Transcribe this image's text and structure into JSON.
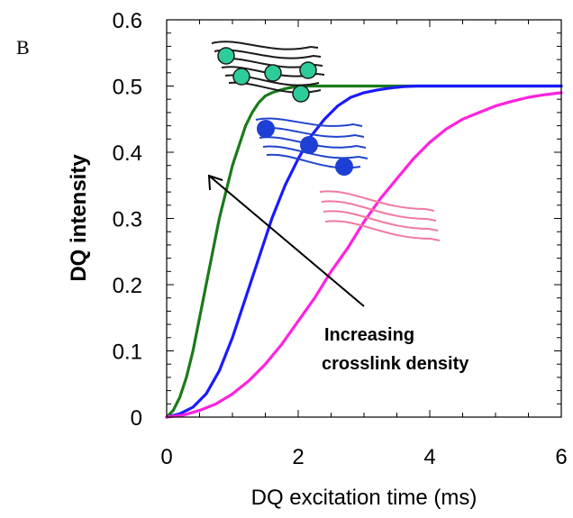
{
  "panel_label": "B",
  "colors": {
    "high": "#1a7a1a",
    "medium": "#1a1aff",
    "low": "#ff22dd",
    "chain_high": "#1a1a1a",
    "bead_high": "#2ecc9a",
    "chain_medium": "#2244cc",
    "bead_medium": "#1e3fd6",
    "chain_low": "#f07aa0"
  },
  "chart_data": {
    "type": "line",
    "xlabel": "DQ excitation time (ms)",
    "ylabel": "DQ intensity",
    "xlim": [
      0,
      6
    ],
    "ylim": [
      0,
      0.6
    ],
    "xticks": [
      "0",
      "2",
      "4",
      "6"
    ],
    "yticks": [
      "0",
      "0.1",
      "0.2",
      "0.3",
      "0.4",
      "0.5",
      "0.6"
    ],
    "annotation": [
      "Increasing",
      "crosslink density"
    ],
    "series": [
      {
        "color": "#1a7a1a",
        "x": [
          0,
          0.1,
          0.2,
          0.3,
          0.4,
          0.5,
          0.6,
          0.7,
          0.8,
          0.9,
          1.0,
          1.1,
          1.2,
          1.3,
          1.4,
          1.5,
          1.6,
          1.7,
          1.8,
          1.9,
          2.0,
          2.2,
          2.5,
          3.0,
          4.0,
          6.0
        ],
        "y": [
          0,
          0.01,
          0.03,
          0.06,
          0.1,
          0.15,
          0.2,
          0.25,
          0.3,
          0.34,
          0.38,
          0.41,
          0.44,
          0.46,
          0.475,
          0.485,
          0.49,
          0.493,
          0.496,
          0.498,
          0.5,
          0.5,
          0.5,
          0.5,
          0.5,
          0.5
        ]
      },
      {
        "color": "#1a1aff",
        "x": [
          0,
          0.2,
          0.4,
          0.6,
          0.8,
          1.0,
          1.2,
          1.4,
          1.6,
          1.8,
          2.0,
          2.2,
          2.4,
          2.6,
          2.8,
          3.0,
          3.2,
          3.4,
          3.6,
          3.8,
          4.0,
          5.0,
          6.0
        ],
        "y": [
          0,
          0.005,
          0.015,
          0.035,
          0.07,
          0.12,
          0.18,
          0.24,
          0.3,
          0.35,
          0.39,
          0.425,
          0.45,
          0.47,
          0.483,
          0.49,
          0.494,
          0.497,
          0.499,
          0.5,
          0.5,
          0.5,
          0.5
        ]
      },
      {
        "color": "#ff22dd",
        "x": [
          0,
          0.25,
          0.5,
          0.75,
          1.0,
          1.25,
          1.5,
          1.75,
          2.0,
          2.25,
          2.5,
          2.75,
          3.0,
          3.25,
          3.5,
          3.75,
          4.0,
          4.25,
          4.5,
          4.75,
          5.0,
          5.25,
          5.5,
          5.75,
          6.0
        ],
        "y": [
          0,
          0.003,
          0.01,
          0.02,
          0.035,
          0.055,
          0.08,
          0.11,
          0.145,
          0.18,
          0.22,
          0.255,
          0.295,
          0.33,
          0.36,
          0.39,
          0.415,
          0.435,
          0.45,
          0.46,
          0.47,
          0.477,
          0.483,
          0.487,
          0.49
        ]
      }
    ]
  }
}
